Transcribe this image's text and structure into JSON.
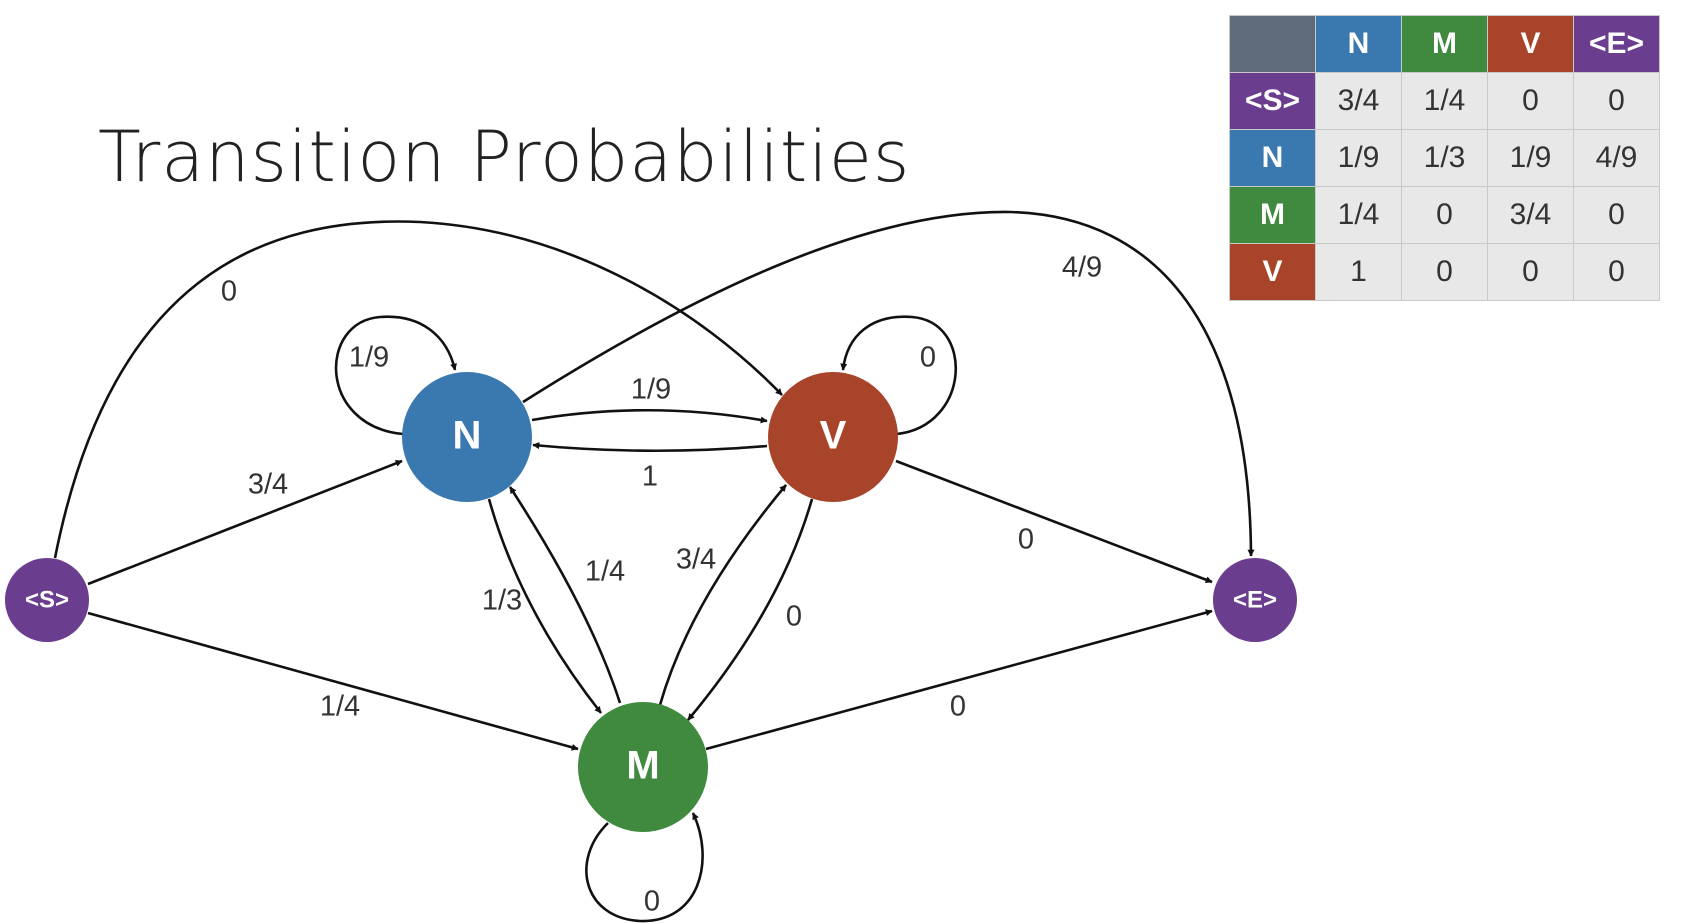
{
  "title": "Transition Probabilities",
  "colors": {
    "S": "#6a3d8f",
    "N": "#3a78b0",
    "V": "#a8442a",
    "M": "#3f8a3f",
    "E": "#6a3d8f",
    "corner": "#5e6b7b",
    "edge": "#111111"
  },
  "nodes": {
    "S": "<S>",
    "N": "N",
    "V": "V",
    "M": "M",
    "E": "<E>"
  },
  "edges": [
    {
      "from": "S",
      "to": "N",
      "label": "3/4"
    },
    {
      "from": "S",
      "to": "M",
      "label": "1/4"
    },
    {
      "from": "S",
      "to": "V",
      "label": "0"
    },
    {
      "from": "N",
      "to": "N",
      "label": "1/9"
    },
    {
      "from": "N",
      "to": "V",
      "label": "1/9"
    },
    {
      "from": "N",
      "to": "M",
      "label": "1/3"
    },
    {
      "from": "N",
      "to": "E",
      "label": "4/9"
    },
    {
      "from": "V",
      "to": "N",
      "label": "1"
    },
    {
      "from": "V",
      "to": "V",
      "label": "0"
    },
    {
      "from": "V",
      "to": "M",
      "label": "0"
    },
    {
      "from": "V",
      "to": "E",
      "label": "0"
    },
    {
      "from": "M",
      "to": "N",
      "label": "1/4"
    },
    {
      "from": "M",
      "to": "V",
      "label": "3/4"
    },
    {
      "from": "M",
      "to": "M",
      "label": "0"
    },
    {
      "from": "M",
      "to": "E",
      "label": "0"
    }
  ],
  "table": {
    "columns": [
      {
        "key": "N",
        "label": "N"
      },
      {
        "key": "M",
        "label": "M"
      },
      {
        "key": "V",
        "label": "V"
      },
      {
        "key": "E",
        "label": "<E>"
      }
    ],
    "rows": [
      {
        "key": "S",
        "label": "<S>",
        "values": [
          "3/4",
          "1/4",
          "0",
          "0"
        ]
      },
      {
        "key": "N",
        "label": "N",
        "values": [
          "1/9",
          "1/3",
          "1/9",
          "4/9"
        ]
      },
      {
        "key": "M",
        "label": "M",
        "values": [
          "1/4",
          "0",
          "3/4",
          "0"
        ]
      },
      {
        "key": "V",
        "label": "V",
        "values": [
          "1",
          "0",
          "0",
          "0"
        ]
      }
    ]
  }
}
